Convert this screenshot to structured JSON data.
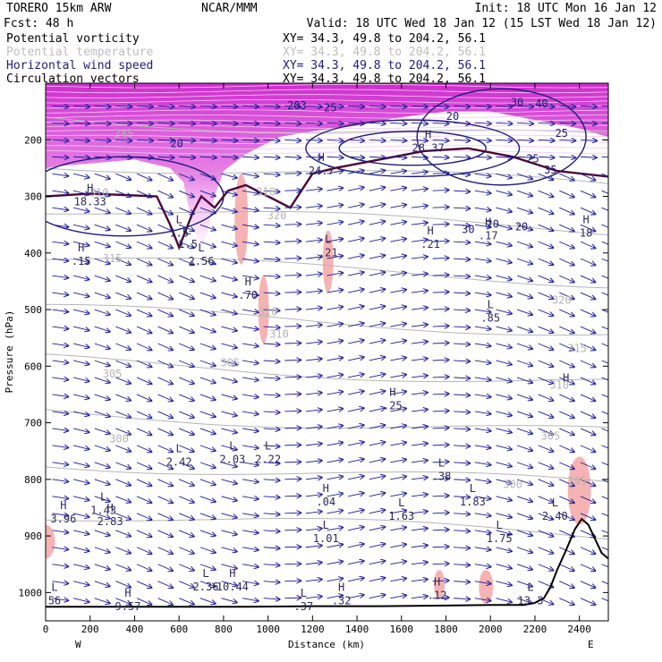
{
  "header": {
    "model": "TORERO  15km ARW",
    "center": "NCAR/MMM",
    "init": "Init: 18 UTC Mon 16 Jan 12",
    "fcst": "Fcst:   48 h",
    "valid": "Valid: 18 UTC Wed 18 Jan 12 (15 LST Wed 18 Jan 12)"
  },
  "fields": [
    {
      "name": "Potential vorticity",
      "xy": "XY=  34.3, 49.8 to 204.2, 56.1",
      "color": "#000000"
    },
    {
      "name": "Potential temperature",
      "xy": "XY=  34.3, 49.8 to 204.2, 56.1",
      "color": "#bdbdbd"
    },
    {
      "name": "Horizontal wind speed",
      "xy": "XY=  34.3, 49.8 to 204.2, 56.1",
      "color": "#1c1c7a"
    },
    {
      "name": "Circulation vectors",
      "xy": "XY=  34.3, 49.8 to 204.2, 56.1",
      "color": "#000000"
    }
  ],
  "colors": {
    "pv_fill": "#dd33dd",
    "pv_line": "#4a0a3a",
    "theta": "#b5b5b5",
    "wind": "#1c1c7a",
    "vectors": "#1c1c9a",
    "pink": "#f4a6a6",
    "terrain": "#000000"
  },
  "chart_data": {
    "type": "cross-section",
    "xlabel": "Distance (km)",
    "ylabel": "Pressure (hPa)",
    "xlim": [
      0,
      2530
    ],
    "ylim": [
      1050,
      100
    ],
    "xticks": [
      0,
      200,
      400,
      600,
      800,
      1000,
      1200,
      1400,
      1600,
      1800,
      2000,
      2200,
      2400
    ],
    "yticks": [
      200,
      300,
      400,
      500,
      600,
      700,
      800,
      900,
      1000
    ],
    "x_end_labels": {
      "left": "W",
      "right": "E"
    },
    "theta_contours": [
      {
        "label": "310",
        "x": 990,
        "p": 298
      },
      {
        "label": "315",
        "x": 300,
        "p": 416
      },
      {
        "label": "320",
        "x": 1040,
        "p": 340
      },
      {
        "label": "320",
        "x": 2320,
        "p": 490
      },
      {
        "label": "310",
        "x": 240,
        "p": 300
      },
      {
        "label": "310",
        "x": 1000,
        "p": 510
      },
      {
        "label": "310",
        "x": 1050,
        "p": 550
      },
      {
        "label": "305",
        "x": 300,
        "p": 620
      },
      {
        "label": "305",
        "x": 830,
        "p": 600
      },
      {
        "label": "300",
        "x": 330,
        "p": 735
      },
      {
        "label": "310",
        "x": 2310,
        "p": 640
      },
      {
        "label": "305",
        "x": 2270,
        "p": 730
      },
      {
        "label": "300",
        "x": 2100,
        "p": 815
      },
      {
        "label": "295",
        "x": 2390,
        "p": 810
      },
      {
        "label": "315",
        "x": 2390,
        "p": 575
      },
      {
        "label": "245",
        "x": 350,
        "p": 196
      }
    ],
    "wind_labels": [
      {
        "label": "20",
        "x": 590,
        "p": 213
      },
      {
        "label": "30",
        "x": 2120,
        "p": 140
      },
      {
        "label": "40",
        "x": 2230,
        "p": 143
      },
      {
        "label": "20",
        "x": 1830,
        "p": 165
      },
      {
        "label": "25",
        "x": 1280,
        "p": 150
      },
      {
        "label": "20",
        "x": 2140,
        "p": 360
      },
      {
        "label": "30",
        "x": 1900,
        "p": 365
      },
      {
        "label": "20",
        "x": 2010,
        "p": 355
      },
      {
        "label": "25",
        "x": 2320,
        "p": 195
      },
      {
        "label": "35",
        "x": 2270,
        "p": 260
      },
      {
        "label": "25",
        "x": 2190,
        "p": 240
      },
      {
        "label": "203",
        "x": 1130,
        "p": 146
      }
    ],
    "extrema": [
      {
        "type": "H",
        "value": "18.33",
        "x": 200,
        "p": 305
      },
      {
        "type": "H",
        "value": ".15",
        "x": 160,
        "p": 410
      },
      {
        "type": "L",
        "value": "1.5",
        "x": 600,
        "p": 360
      },
      {
        "type": "L",
        "value": "1.5",
        "x": 640,
        "p": 380
      },
      {
        "type": "L",
        "value": "2.56",
        "x": 700,
        "p": 410
      },
      {
        "type": "H",
        "value": "24.7",
        "x": 1240,
        "p": 250
      },
      {
        "type": "H",
        "value": "28.37",
        "x": 1720,
        "p": 210
      },
      {
        "type": "L",
        "value": ".21",
        "x": 1270,
        "p": 395
      },
      {
        "type": "H",
        "value": ".21",
        "x": 1730,
        "p": 380
      },
      {
        "type": "H",
        "value": ".17",
        "x": 1990,
        "p": 365
      },
      {
        "type": "H",
        "value": "18",
        "x": 2430,
        "p": 360
      },
      {
        "type": "H",
        "value": ".70",
        "x": 910,
        "p": 470
      },
      {
        "type": "L",
        "value": ".85",
        "x": 2000,
        "p": 510
      },
      {
        "type": "H",
        "value": ".25",
        "x": 1560,
        "p": 665
      },
      {
        "type": "L",
        "value": "2.42",
        "x": 600,
        "p": 765
      },
      {
        "type": "L",
        "value": "2.03",
        "x": 840,
        "p": 760
      },
      {
        "type": "L",
        "value": "2.22",
        "x": 1000,
        "p": 760
      },
      {
        "type": "H",
        "value": ".04",
        "x": 1260,
        "p": 835
      },
      {
        "type": "L",
        "value": ".38",
        "x": 1780,
        "p": 790
      },
      {
        "type": "L",
        "value": "1.83",
        "x": 1920,
        "p": 835
      },
      {
        "type": "L",
        "value": "1.63",
        "x": 1600,
        "p": 860
      },
      {
        "type": "H",
        "value": "3.96",
        "x": 80,
        "p": 865
      },
      {
        "type": "L",
        "value": "1.43",
        "x": 260,
        "p": 850
      },
      {
        "type": "H",
        "value": "2.83",
        "x": 290,
        "p": 870
      },
      {
        "type": "L",
        "value": "1.01",
        "x": 1260,
        "p": 900
      },
      {
        "type": "L",
        "value": "1.75",
        "x": 2040,
        "p": 900
      },
      {
        "type": "L",
        "value": "2.40",
        "x": 2290,
        "p": 860
      },
      {
        "type": "L",
        "value": "2.36",
        "x": 720,
        "p": 985
      },
      {
        "type": "H",
        "value": "10.44",
        "x": 840,
        "p": 985
      },
      {
        "type": "H",
        "value": ".12",
        "x": 1760,
        "p": 1000
      },
      {
        "type": "H",
        "value": "9.57",
        "x": 370,
        "p": 1020
      },
      {
        "type": "L",
        "value": ".37",
        "x": 1160,
        "p": 1020
      },
      {
        "type": "H",
        "value": ".32",
        "x": 1330,
        "p": 1010
      },
      {
        "type": "L",
        "value": "13.3",
        "x": 2180,
        "p": 1010
      },
      {
        "type": "L",
        "value": "56",
        "x": 40,
        "p": 1010
      },
      {
        "type": "H",
        "value": "",
        "x": 2340,
        "p": 640
      }
    ],
    "terrain": [
      [
        0,
        1025
      ],
      [
        300,
        1025
      ],
      [
        600,
        1025
      ],
      [
        900,
        1025
      ],
      [
        1200,
        1024
      ],
      [
        1500,
        1024
      ],
      [
        1800,
        1023
      ],
      [
        2000,
        1022
      ],
      [
        2150,
        1022
      ],
      [
        2200,
        1018
      ],
      [
        2240,
        1010
      ],
      [
        2270,
        990
      ],
      [
        2300,
        960
      ],
      [
        2340,
        925
      ],
      [
        2380,
        888
      ],
      [
        2410,
        870
      ],
      [
        2440,
        880
      ],
      [
        2470,
        905
      ],
      [
        2500,
        930
      ],
      [
        2530,
        940
      ]
    ]
  }
}
